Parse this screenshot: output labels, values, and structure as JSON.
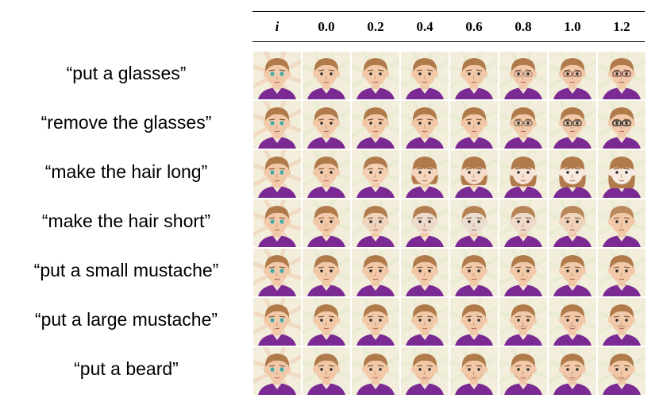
{
  "columns": [
    "i",
    "0.0",
    "0.2",
    "0.4",
    "0.6",
    "0.8",
    "1.0",
    "1.2"
  ],
  "rows": [
    {
      "label": "“put a glasses”",
      "edit": "glasses-add"
    },
    {
      "label": "“remove the glasses”",
      "edit": "glasses-remove"
    },
    {
      "label": "“make the hair long”",
      "edit": "hair-long"
    },
    {
      "label": "“make the hair short”",
      "edit": "hair-short"
    },
    {
      "label": "“put a small mustache”",
      "edit": "mustache-small"
    },
    {
      "label": "“put a large mustache”",
      "edit": "mustache-large"
    },
    {
      "label": "“put a beard”",
      "edit": "beard"
    }
  ],
  "colors": {
    "hair": "#b07a4a",
    "skin": "#f2c9a8",
    "shirt": "#7a2a92",
    "eye_input": "#4fa8a0",
    "background": "#f3eedc"
  }
}
